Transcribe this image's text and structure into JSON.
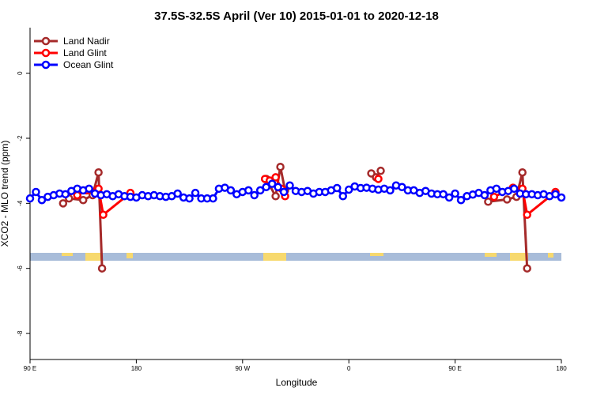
{
  "chart_data": {
    "type": "line",
    "title": "37.5S-32.5S April (Ver 10)   2015-01-01 to 2020-12-18",
    "x_label": "Longitude",
    "y_label": "XCO2 - MLO trend (ppm)",
    "xlim": [
      90,
      540
    ],
    "ylim": [
      -8.8,
      1.4
    ],
    "xticks": [
      {
        "value": 90,
        "label": "90 E"
      },
      {
        "value": 180,
        "label": "180"
      },
      {
        "value": 270,
        "label": "90 W"
      },
      {
        "value": 360,
        "label": "0"
      },
      {
        "value": 450,
        "label": "90 E"
      },
      {
        "value": 540,
        "label": "180"
      }
    ],
    "yticks": [
      0,
      -2,
      -4,
      -6,
      -8
    ],
    "legend": "top-left",
    "series": [
      {
        "name": "Land Nadir",
        "color": "#a52a2a",
        "x": [
          118,
          123,
          135,
          143,
          148,
          151,
          null,
          290,
          298,
          302,
          306,
          null,
          379,
          383,
          387,
          null,
          478,
          494,
          502,
          507,
          511
        ],
        "values": [
          -4.0,
          -3.85,
          -3.9,
          -3.75,
          -3.05,
          -6.0,
          null,
          -3.25,
          -3.78,
          -2.88,
          -3.6,
          null,
          -3.08,
          -3.2,
          -3.0,
          null,
          -3.95,
          -3.88,
          -3.8,
          -3.05,
          -6.0
        ]
      },
      {
        "name": "Land Glint",
        "color": "#ff0000",
        "x": [
          130,
          138,
          148,
          152,
          175,
          null,
          289,
          293,
          298,
          303,
          306,
          null,
          385,
          null,
          483,
          499,
          507,
          511,
          535
        ],
        "values": [
          -3.75,
          -3.6,
          -3.55,
          -4.35,
          -3.68,
          null,
          -3.25,
          -3.3,
          -3.2,
          -3.55,
          -3.78,
          null,
          -3.25,
          null,
          -3.8,
          -3.52,
          -3.55,
          -4.35,
          -3.65
        ]
      },
      {
        "name": "Ocean Glint",
        "color": "#0000ff",
        "x": [
          90,
          95,
          100,
          105,
          110,
          115,
          120,
          125,
          130,
          135,
          140,
          145,
          150,
          155,
          160,
          165,
          170,
          175,
          180,
          185,
          190,
          195,
          200,
          205,
          210,
          215,
          220,
          225,
          230,
          235,
          240,
          245,
          250,
          255,
          260,
          265,
          270,
          275,
          280,
          285,
          290,
          295,
          300,
          305,
          310,
          315,
          320,
          325,
          330,
          335,
          340,
          345,
          350,
          355,
          360,
          365,
          370,
          375,
          380,
          385,
          390,
          395,
          400,
          405,
          410,
          415,
          420,
          425,
          430,
          435,
          440,
          445,
          450,
          455,
          460,
          465,
          470,
          475,
          480,
          485,
          490,
          495,
          500,
          505,
          510,
          515,
          520,
          525,
          530,
          535,
          540
        ],
        "values": [
          -3.85,
          -3.65,
          -3.9,
          -3.8,
          -3.75,
          -3.7,
          -3.72,
          -3.62,
          -3.55,
          -3.6,
          -3.55,
          -3.7,
          -3.75,
          -3.72,
          -3.78,
          -3.72,
          -3.78,
          -3.8,
          -3.82,
          -3.75,
          -3.78,
          -3.75,
          -3.78,
          -3.8,
          -3.78,
          -3.7,
          -3.82,
          -3.85,
          -3.68,
          -3.85,
          -3.85,
          -3.85,
          -3.55,
          -3.52,
          -3.6,
          -3.72,
          -3.65,
          -3.6,
          -3.75,
          -3.6,
          -3.5,
          -3.4,
          -3.5,
          -3.65,
          -3.45,
          -3.62,
          -3.65,
          -3.62,
          -3.7,
          -3.65,
          -3.65,
          -3.6,
          -3.53,
          -3.78,
          -3.58,
          -3.48,
          -3.53,
          -3.52,
          -3.55,
          -3.58,
          -3.55,
          -3.6,
          -3.45,
          -3.5,
          -3.6,
          -3.6,
          -3.68,
          -3.62,
          -3.7,
          -3.72,
          -3.72,
          -3.82,
          -3.7,
          -3.9,
          -3.78,
          -3.73,
          -3.68,
          -3.75,
          -3.6,
          -3.55,
          -3.65,
          -3.62,
          -3.55,
          -3.7,
          -3.72,
          -3.72,
          -3.75,
          -3.72,
          -3.78,
          -3.72,
          -3.82
        ]
      }
    ]
  }
}
